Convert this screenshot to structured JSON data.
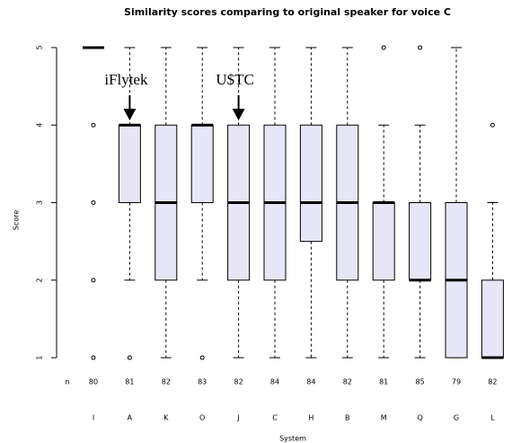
{
  "chart_data": {
    "type": "box",
    "title": "Similarity scores comparing to original speaker for voice C",
    "x_label": "System",
    "y_label": "Score",
    "n_label": "n",
    "categories": [
      "I",
      "A",
      "K",
      "O",
      "J",
      "C",
      "H",
      "B",
      "M",
      "Q",
      "G",
      "L"
    ],
    "counts": [
      80,
      81,
      82,
      83,
      82,
      84,
      84,
      82,
      81,
      85,
      79,
      82
    ],
    "boxes": [
      {
        "whislo": 5,
        "q1": 5,
        "med": 5,
        "q3": 5,
        "whishi": 5,
        "fliers": [
          4,
          3,
          2,
          1
        ]
      },
      {
        "whislo": 2,
        "q1": 3,
        "med": 4,
        "q3": 4,
        "whishi": 5,
        "fliers": [
          1
        ]
      },
      {
        "whislo": 1,
        "q1": 2,
        "med": 3,
        "q3": 4,
        "whishi": 5,
        "fliers": []
      },
      {
        "whislo": 2,
        "q1": 3,
        "med": 4,
        "q3": 4,
        "whishi": 5,
        "fliers": [
          1
        ]
      },
      {
        "whislo": 1,
        "q1": 2,
        "med": 3,
        "q3": 4,
        "whishi": 5,
        "fliers": []
      },
      {
        "whislo": 1,
        "q1": 2,
        "med": 3,
        "q3": 4,
        "whishi": 5,
        "fliers": []
      },
      {
        "whislo": 1,
        "q1": 2.5,
        "med": 3,
        "q3": 4,
        "whishi": 5,
        "fliers": []
      },
      {
        "whislo": 1,
        "q1": 2,
        "med": 3,
        "q3": 4,
        "whishi": 5,
        "fliers": []
      },
      {
        "whislo": 1,
        "q1": 2,
        "med": 3,
        "q3": 3,
        "whishi": 4,
        "fliers": [
          5
        ]
      },
      {
        "whislo": 1,
        "q1": 2,
        "med": 2,
        "q3": 3,
        "whishi": 4,
        "fliers": [
          5
        ]
      },
      {
        "whislo": 1,
        "q1": 1,
        "med": 2,
        "q3": 3,
        "whishi": 5,
        "fliers": []
      },
      {
        "whislo": 1,
        "q1": 1,
        "med": 1,
        "q3": 2,
        "whishi": 3,
        "fliers": [
          4
        ]
      }
    ],
    "color": "#e6e6f7",
    "annotations": [
      "iFlytek",
      "U$TC"
    ],
    "ylim": [
      0.85,
      5.15
    ],
    "yticks": [
      1,
      2,
      3,
      4,
      5
    ]
  }
}
